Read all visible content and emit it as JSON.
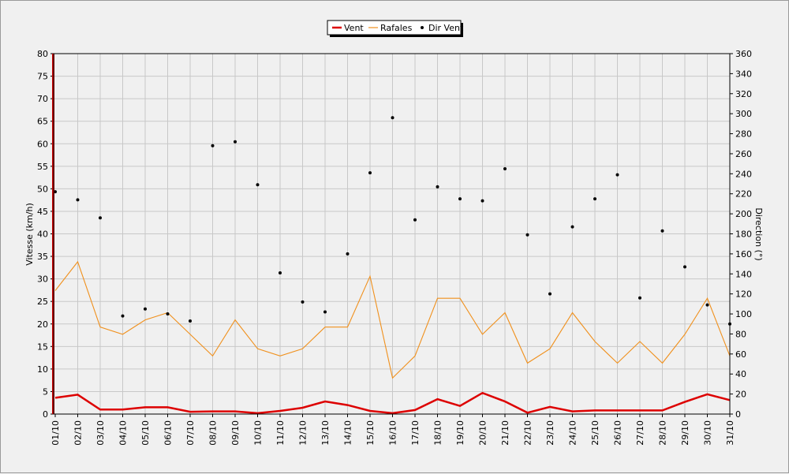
{
  "chart_data": {
    "type": "line",
    "title": "",
    "categories": [
      "01/10",
      "02/10",
      "03/10",
      "04/10",
      "05/10",
      "06/10",
      "07/10",
      "08/10",
      "09/10",
      "10/10",
      "11/10",
      "12/10",
      "13/10",
      "14/10",
      "15/10",
      "16/10",
      "17/10",
      "18/10",
      "19/10",
      "20/10",
      "21/10",
      "22/10",
      "23/10",
      "24/10",
      "25/10",
      "26/10",
      "27/10",
      "28/10",
      "29/10",
      "30/10",
      "31/10"
    ],
    "left_axis": {
      "label": "Vitesse (km/h)",
      "min": 0,
      "max": 80,
      "step": 5
    },
    "right_axis": {
      "label": "Direction (°)",
      "min": 0,
      "max": 360,
      "step": 20
    },
    "grid": true,
    "legend_position": "top-center",
    "series": [
      {
        "name": "Vent",
        "type": "line",
        "axis": "left",
        "color": "#dd0000",
        "values": [
          3.6,
          4.3,
          1.0,
          1.0,
          1.5,
          1.5,
          0.5,
          0.6,
          0.6,
          0.2,
          0.7,
          1.4,
          2.8,
          2.0,
          0.7,
          0.2,
          0.9,
          3.3,
          1.8,
          4.7,
          2.8,
          0.3,
          1.6,
          0.6,
          0.8,
          0.8,
          0.8,
          0.8,
          2.7,
          4.4,
          3.1
        ]
      },
      {
        "name": "Rafales",
        "type": "line",
        "axis": "left",
        "color": "#f0901c",
        "values": [
          27.4,
          33.8,
          19.3,
          17.7,
          20.9,
          22.5,
          17.7,
          12.9,
          20.9,
          14.5,
          12.9,
          14.5,
          19.3,
          19.3,
          30.6,
          8.0,
          12.9,
          25.7,
          25.7,
          17.7,
          22.5,
          11.3,
          14.5,
          22.5,
          16.1,
          11.3,
          16.1,
          11.3,
          17.7,
          25.7,
          12.9
        ]
      },
      {
        "name": "Dir Vent",
        "type": "scatter",
        "axis": "right",
        "color": "#000000",
        "values": [
          222,
          214,
          196,
          98,
          105,
          100,
          93,
          268,
          272,
          229,
          141,
          112,
          102,
          160,
          241,
          296,
          194,
          227,
          215,
          213,
          245,
          179,
          120,
          187,
          215,
          239,
          116,
          183,
          147,
          109,
          90
        ]
      }
    ]
  }
}
